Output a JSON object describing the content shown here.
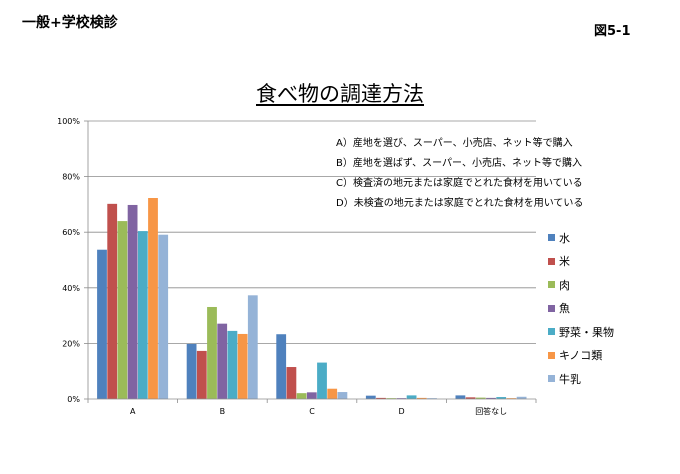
{
  "header": {
    "left_label": "一般+学校検診",
    "figure_label": "図5-1"
  },
  "chart_data": {
    "type": "bar",
    "title": "食べ物の調達方法",
    "categories": [
      "A",
      "B",
      "C",
      "D",
      "回答なし"
    ],
    "ylim": [
      0,
      100
    ],
    "yticks": [
      "0%",
      "20%",
      "40%",
      "60%",
      "80%",
      "100%"
    ],
    "grid": true,
    "legend_position": "right",
    "series": [
      {
        "name": "水",
        "color": "#4f81bd",
        "values": [
          53.7,
          19.8,
          23.3,
          1.2,
          1.3
        ]
      },
      {
        "name": "米",
        "color": "#c0504d",
        "values": [
          70.2,
          17.3,
          11.5,
          0.4,
          0.6
        ]
      },
      {
        "name": "肉",
        "color": "#9bbb59",
        "values": [
          64.0,
          33.1,
          2.1,
          0.3,
          0.5
        ]
      },
      {
        "name": "魚",
        "color": "#8064a2",
        "values": [
          69.8,
          27.1,
          2.4,
          0.3,
          0.4
        ]
      },
      {
        "name": "野菜・果物",
        "color": "#4bacc6",
        "values": [
          60.4,
          24.5,
          13.1,
          1.3,
          0.7
        ]
      },
      {
        "name": "キノコ類",
        "color": "#f79646",
        "values": [
          72.3,
          23.4,
          3.7,
          0.4,
          0.3
        ]
      },
      {
        "name": "牛乳",
        "color": "#95b3d7",
        "values": [
          59.1,
          37.3,
          2.5,
          0.3,
          0.8
        ]
      }
    ],
    "notes": [
      "A）産地を選び、スーパー、小売店、ネット等で購入",
      "B）産地を選ばず、スーパー、小売店、ネット等で購入",
      "C）検査済の地元または家庭でとれた食材を用いている",
      "D）未検査の地元または家庭でとれた食材を用いている"
    ]
  }
}
